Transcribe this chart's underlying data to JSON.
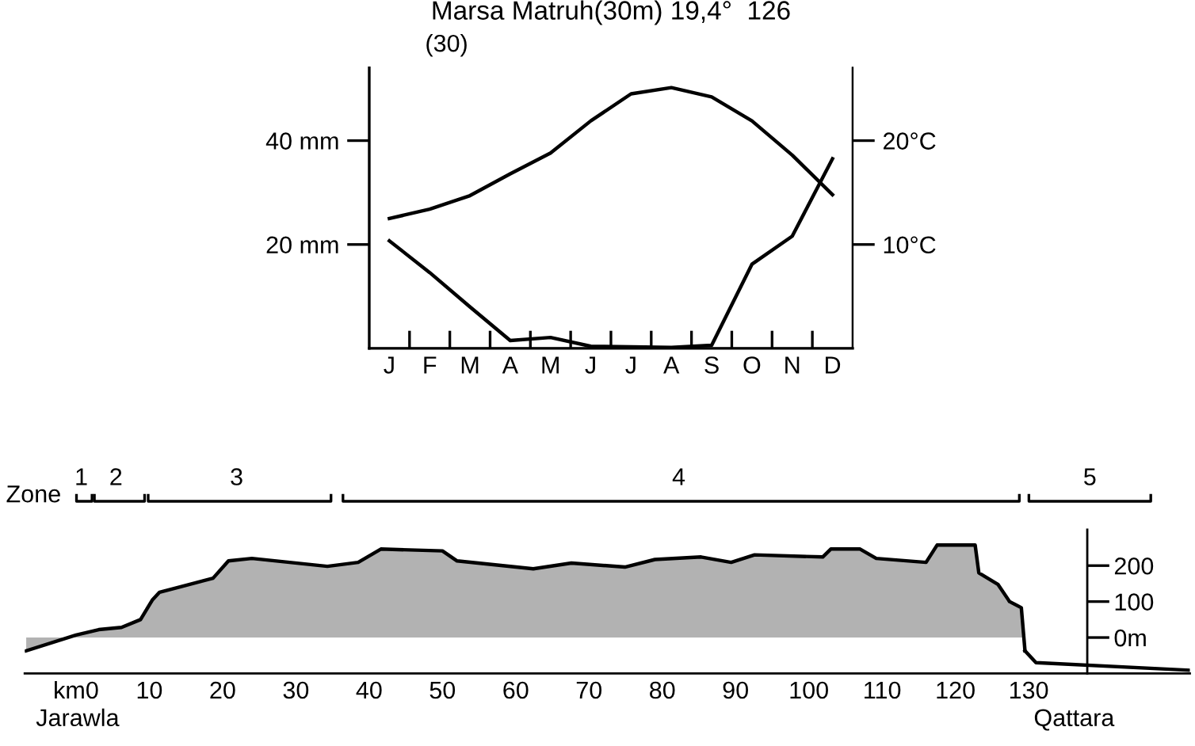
{
  "chart_data": [
    {
      "type": "line",
      "title": "Marsa Matruh(30m) 19,4°  126",
      "annotations": [
        "(30)"
      ],
      "categories": [
        "J",
        "F",
        "M",
        "A",
        "M",
        "J",
        "J",
        "A",
        "S",
        "O",
        "N",
        "D"
      ],
      "ylim": [
        0,
        54
      ],
      "yticks": [
        {
          "value": 20,
          "label": "20 mm"
        },
        {
          "value": 40,
          "label": "40 mm"
        }
      ],
      "y2lim": [
        0,
        27
      ],
      "y2ticks": [
        {
          "value": 10,
          "label": "10°C"
        },
        {
          "value": 20,
          "label": "20°C"
        }
      ],
      "series": [
        {
          "color": "#000000",
          "values": [
            20.7,
            14.6,
            8.0,
            1.5,
            2.1,
            0.4,
            0.3,
            0.2,
            0.6,
            16.2,
            21.6,
            36.5
          ]
        },
        {
          "color": "#000000",
          "axis": "y2",
          "values": [
            12.5,
            13.4,
            14.7,
            16.8,
            18.8,
            21.9,
            24.5,
            25.1,
            24.2,
            21.9,
            18.6,
            14.8
          ]
        }
      ]
    },
    {
      "type": "area",
      "annotations": [
        "Zone",
        "Jarawla",
        "Qattara",
        "1",
        "2",
        "3",
        "4",
        "5"
      ],
      "xlim": [
        -7,
        152
      ],
      "xticks": [
        {
          "value": 0,
          "label": "km0"
        },
        10,
        20,
        30,
        40,
        50,
        60,
        70,
        80,
        90,
        100,
        110,
        120,
        130
      ],
      "ylim": [
        -100,
        300
      ],
      "yticks": [
        {
          "value": 0,
          "label": "0m"
        },
        100,
        200
      ],
      "series": [
        {
          "color": "#000000",
          "x": [
            -6.8,
            0,
            3.1,
            6.2,
            8.8,
            10.4,
            11.4,
            14.6,
            18.7,
            20.8,
            24,
            34.3,
            38.5,
            41.6,
            50,
            52,
            62.4,
            67.6,
            74.9,
            79,
            85.3,
            89.4,
            92.6,
            101.9,
            103,
            107,
            109.2,
            116,
            117.5,
            122.7,
            123.2,
            125.8,
            127.4,
            129,
            129.5
          ],
          "values": [
            -37,
            7,
            22,
            28,
            50,
            104,
            126,
            143,
            165,
            213,
            220,
            198,
            209,
            246,
            241,
            213,
            191,
            207,
            196,
            217,
            224,
            209,
            230,
            224,
            246,
            246,
            220,
            209,
            257,
            257,
            180,
            148,
            100,
            83,
            -37
          ]
        },
        {
          "type": "line",
          "color": "#000000",
          "x": [
            129.5,
            131,
            152
          ],
          "values": [
            -37,
            -70,
            -91
          ]
        }
      ]
    }
  ]
}
